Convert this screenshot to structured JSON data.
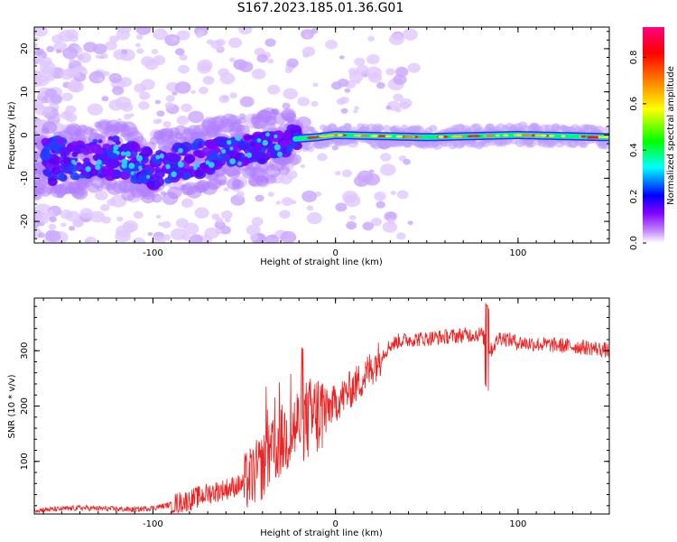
{
  "title": "S167.2023.185.01.36.G01",
  "chart_data": [
    {
      "type": "heatmap",
      "xlabel": "Height of straight line (km)",
      "ylabel": "Frequency (Hz)",
      "xlim": [
        -165,
        150
      ],
      "ylim": [
        -25,
        25
      ],
      "xticks": [
        -100,
        0,
        100
      ],
      "yticks": [
        -20,
        -10,
        0,
        10,
        20
      ],
      "colorbar": {
        "label": "Normalized spectral amplitude",
        "range": [
          0,
          0.93
        ],
        "ticks": [
          "0.0",
          "0.2",
          "0.4",
          "0.6",
          "0.8"
        ],
        "tick_values": [
          0,
          0.2,
          0.4,
          0.6,
          0.8
        ],
        "colormap": [
          "#ffffff",
          "#8000ff",
          "#0000ff",
          "#00ffff",
          "#00ff00",
          "#ffff00",
          "#ff8000",
          "#ff0000",
          "#ff00aa"
        ]
      },
      "ridge": [
        {
          "x": -145,
          "f": -6
        },
        {
          "x": -120,
          "f": -5
        },
        {
          "x": -100,
          "f": -8
        },
        {
          "x": -80,
          "f": -6
        },
        {
          "x": -60,
          "f": -4
        },
        {
          "x": -40,
          "f": -3
        },
        {
          "x": -25,
          "f": -1
        },
        {
          "x": -10,
          "f": -0.5
        },
        {
          "x": 0,
          "f": 0
        },
        {
          "x": 50,
          "f": -0.5
        },
        {
          "x": 100,
          "f": 0
        },
        {
          "x": 150,
          "f": -0.5
        }
      ]
    },
    {
      "type": "line",
      "xlabel": "Height of straight line (km)",
      "ylabel": "SNR (10 * v/v)",
      "xlim": [
        -165,
        150
      ],
      "ylim": [
        5,
        395
      ],
      "xticks": [
        -100,
        0,
        100
      ],
      "yticks": [
        100,
        200,
        300
      ],
      "series": [
        {
          "color": "#ee2222",
          "x": [
            -165,
            -150,
            -140,
            -130,
            -120,
            -110,
            -100,
            -90,
            -80,
            -70,
            -60,
            -50,
            -45,
            -40,
            -35,
            -30,
            -25,
            -20,
            -15,
            -10,
            -5,
            0,
            5,
            10,
            15,
            20,
            25,
            30,
            35,
            40,
            50,
            60,
            70,
            80,
            85,
            90,
            100,
            110,
            120,
            130,
            140,
            150
          ],
          "y": [
            12,
            14,
            16,
            15,
            14,
            13,
            16,
            22,
            30,
            42,
            50,
            60,
            75,
            90,
            110,
            135,
            150,
            170,
            175,
            185,
            195,
            205,
            220,
            235,
            250,
            270,
            290,
            310,
            318,
            320,
            322,
            325,
            328,
            330,
            300,
            325,
            315,
            312,
            310,
            308,
            305,
            300
          ]
        }
      ]
    }
  ]
}
